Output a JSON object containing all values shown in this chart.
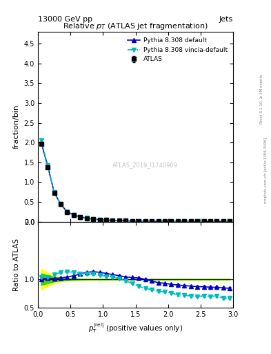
{
  "title": "Relative $p_T$ (ATLAS jet fragmentation)",
  "top_left_label": "13000 GeV pp",
  "top_right_label": "Jets",
  "ylabel_main": "fraction/bin",
  "ylabel_ratio": "Ratio to ATLAS",
  "watermark": "ATLAS_2019_I1740909",
  "right_label": "Rivet 3.1.10, ≥ 3M events",
  "right_label2": "mcplots.cern.ch [arXiv:1306.3436]",
  "x_data": [
    0.05,
    0.15,
    0.25,
    0.35,
    0.45,
    0.55,
    0.65,
    0.75,
    0.85,
    0.95,
    1.05,
    1.15,
    1.25,
    1.35,
    1.45,
    1.55,
    1.65,
    1.75,
    1.85,
    1.95,
    2.05,
    2.15,
    2.25,
    2.35,
    2.45,
    2.55,
    2.65,
    2.75,
    2.85,
    2.95
  ],
  "atlas_y": [
    1.97,
    1.38,
    0.73,
    0.44,
    0.24,
    0.16,
    0.11,
    0.08,
    0.06,
    0.05,
    0.04,
    0.03,
    0.025,
    0.02,
    0.018,
    0.015,
    0.013,
    0.011,
    0.01,
    0.009,
    0.008,
    0.007,
    0.006,
    0.006,
    0.005,
    0.005,
    0.004,
    0.004,
    0.004,
    0.003
  ],
  "atlas_yerr": [
    0.02,
    0.015,
    0.01,
    0.007,
    0.005,
    0.004,
    0.003,
    0.002,
    0.002,
    0.002,
    0.001,
    0.001,
    0.001,
    0.001,
    0.001,
    0.001,
    0.001,
    0.001,
    0.001,
    0.001,
    0.001,
    0.001,
    0.001,
    0.001,
    0.001,
    0.001,
    0.001,
    0.001,
    0.001,
    0.001
  ],
  "pythia_default_y": [
    2.0,
    1.41,
    0.74,
    0.44,
    0.25,
    0.17,
    0.12,
    0.09,
    0.065,
    0.052,
    0.041,
    0.033,
    0.027,
    0.022,
    0.018,
    0.016,
    0.014,
    0.012,
    0.011,
    0.01,
    0.009,
    0.008,
    0.007,
    0.007,
    0.006,
    0.006,
    0.005,
    0.005,
    0.004,
    0.004
  ],
  "pythia_vincia_y": [
    2.05,
    1.42,
    0.74,
    0.44,
    0.25,
    0.17,
    0.12,
    0.09,
    0.065,
    0.052,
    0.041,
    0.033,
    0.027,
    0.022,
    0.018,
    0.016,
    0.014,
    0.012,
    0.011,
    0.01,
    0.009,
    0.008,
    0.007,
    0.007,
    0.006,
    0.006,
    0.005,
    0.005,
    0.004,
    0.004
  ],
  "ratio_default_y": [
    1.0,
    1.02,
    1.01,
    1.02,
    1.04,
    1.06,
    1.09,
    1.12,
    1.13,
    1.12,
    1.1,
    1.08,
    1.06,
    1.04,
    1.03,
    1.02,
    1.0,
    0.97,
    0.94,
    0.93,
    0.91,
    0.9,
    0.89,
    0.88,
    0.87,
    0.87,
    0.86,
    0.86,
    0.85,
    0.84
  ],
  "ratio_default_yerr": [
    0.01,
    0.01,
    0.01,
    0.01,
    0.01,
    0.01,
    0.01,
    0.01,
    0.01,
    0.01,
    0.01,
    0.01,
    0.01,
    0.01,
    0.01,
    0.01,
    0.01,
    0.01,
    0.01,
    0.01,
    0.01,
    0.01,
    0.01,
    0.015,
    0.015,
    0.015,
    0.015,
    0.02,
    0.02,
    0.02
  ],
  "ratio_vincia_y": [
    1.04,
    1.03,
    1.08,
    1.12,
    1.13,
    1.12,
    1.1,
    1.09,
    1.09,
    1.07,
    1.05,
    1.04,
    1.01,
    0.97,
    0.93,
    0.88,
    0.84,
    0.82,
    0.79,
    0.78,
    0.76,
    0.73,
    0.72,
    0.71,
    0.7,
    0.71,
    0.7,
    0.71,
    0.67,
    0.67
  ],
  "ratio_vincia_yerr": [
    0.015,
    0.015,
    0.015,
    0.015,
    0.015,
    0.015,
    0.015,
    0.015,
    0.015,
    0.015,
    0.015,
    0.015,
    0.015,
    0.015,
    0.015,
    0.015,
    0.015,
    0.015,
    0.015,
    0.015,
    0.015,
    0.015,
    0.015,
    0.02,
    0.02,
    0.02,
    0.02,
    0.02,
    0.025,
    0.025
  ],
  "band_yellow_lo": [
    0.82,
    0.88,
    0.93,
    0.96,
    0.975,
    0.98,
    0.985,
    0.988,
    0.99,
    0.99,
    0.99,
    0.99,
    0.99,
    0.99,
    0.99,
    0.99,
    0.99,
    0.99,
    0.99,
    0.99,
    0.99,
    0.99,
    0.99,
    0.99,
    0.99,
    0.99,
    0.99,
    0.99,
    0.99,
    0.99
  ],
  "band_yellow_hi": [
    1.18,
    1.12,
    1.07,
    1.04,
    1.025,
    1.02,
    1.015,
    1.012,
    1.01,
    1.01,
    1.01,
    1.01,
    1.01,
    1.01,
    1.01,
    1.01,
    1.01,
    1.01,
    1.01,
    1.01,
    1.01,
    1.01,
    1.01,
    1.01,
    1.01,
    1.01,
    1.01,
    1.01,
    1.01,
    1.01
  ],
  "band_green_lo": [
    0.9,
    0.93,
    0.96,
    0.975,
    0.985,
    0.99,
    0.993,
    0.994,
    0.995,
    0.995,
    0.995,
    0.995,
    0.995,
    0.995,
    0.995,
    0.995,
    0.995,
    0.995,
    0.995,
    0.995,
    0.995,
    0.995,
    0.995,
    0.995,
    0.995,
    0.995,
    0.995,
    0.995,
    0.995,
    0.995
  ],
  "band_green_hi": [
    1.1,
    1.07,
    1.04,
    1.025,
    1.015,
    1.01,
    1.007,
    1.006,
    1.005,
    1.005,
    1.005,
    1.005,
    1.005,
    1.005,
    1.005,
    1.005,
    1.005,
    1.005,
    1.005,
    1.005,
    1.005,
    1.005,
    1.005,
    1.005,
    1.005,
    1.005,
    1.005,
    1.005,
    1.005,
    1.005
  ],
  "main_ylim": [
    0,
    4.8
  ],
  "ratio_ylim": [
    0.5,
    2.0
  ],
  "xlim": [
    0,
    3.0
  ],
  "color_atlas": "#000000",
  "color_default": "#0000cc",
  "color_vincia": "#00bbbb",
  "color_band_yellow": "#ffff00",
  "color_band_green": "#00cc00",
  "legend_entries": [
    "ATLAS",
    "Pythia 8.308 default",
    "Pythia 8.308 vincia-default"
  ]
}
